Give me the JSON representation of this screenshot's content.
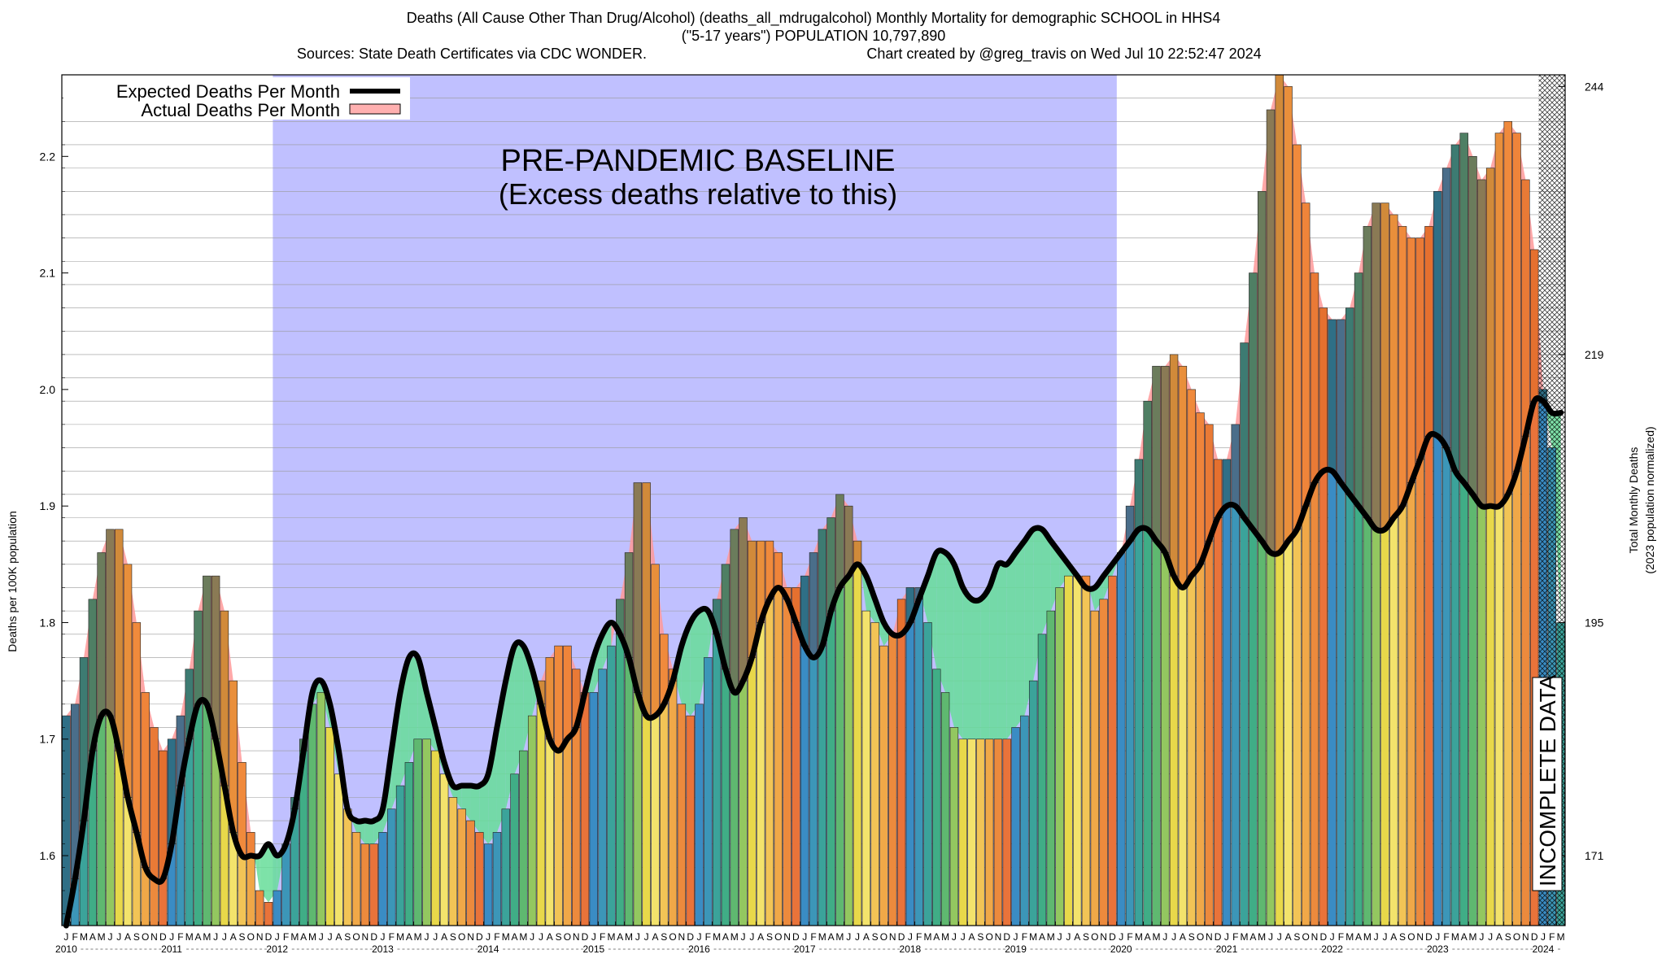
{
  "title": {
    "line1": "Deaths (All Cause Other Than Drug/Alcohol) (deaths_all_mdrugalcohol) Monthly Mortality for demographic SCHOOL in HHS4",
    "line2": "(\"5-17 years\") POPULATION 10,797,890",
    "line3_left": "Sources: State Death Certificates via CDC WONDER.",
    "line3_right": "Chart created by @greg_travis on Wed Jul 10 22:52:47 2024"
  },
  "annotations": {
    "baseline_line1": "PRE-PANDEMIC BASELINE",
    "baseline_line2": "(Excess deaths relative to this)",
    "incomplete": "INCOMPLETE DATA"
  },
  "legend": {
    "expected": "Expected Deaths Per Month",
    "actual": "Actual Deaths Per Month"
  },
  "axes": {
    "ylabel_left": "Deaths per 100K population",
    "ylabel_right_1": "Total Monthly Deaths",
    "ylabel_right_2": "(2023 population normalized)"
  },
  "colors": {
    "baseline_region": "#c0c0ff",
    "excess_fill": "#ff9999",
    "deficit_fill": "#66dd99",
    "expected_line": "#000000",
    "incomplete_hatch": "#000000"
  },
  "chart_data": {
    "type": "bar",
    "start": "2010-01",
    "end": "2024-03",
    "month_letters": [
      "J",
      "F",
      "M",
      "A",
      "M",
      "J",
      "J",
      "A",
      "S",
      "O",
      "N",
      "D"
    ],
    "years": [
      "2010",
      "2011",
      "2012",
      "2013",
      "2014",
      "2015",
      "2016",
      "2017",
      "2018",
      "2019",
      "2020",
      "2021",
      "2022",
      "2023",
      "2024"
    ],
    "ylim": [
      1.54,
      2.27
    ],
    "yticks_left": [
      1.6,
      1.7,
      1.8,
      1.9,
      2.0,
      2.1,
      2.2
    ],
    "yticks_right": [
      {
        "value": 1.6,
        "label": "171"
      },
      {
        "value": 1.8,
        "label": "195"
      },
      {
        "value": 2.03,
        "label": "219"
      },
      {
        "value": 2.26,
        "label": "244"
      }
    ],
    "baseline_period": [
      "2012-01",
      "2019-12"
    ],
    "incomplete_period": [
      "2024-01",
      "2024-03"
    ],
    "series": [
      {
        "name": "Actual Deaths Per Month",
        "values": [
          1.72,
          1.73,
          1.77,
          1.82,
          1.86,
          1.88,
          1.88,
          1.85,
          1.8,
          1.74,
          1.71,
          1.69,
          1.7,
          1.72,
          1.76,
          1.81,
          1.84,
          1.84,
          1.81,
          1.75,
          1.68,
          1.62,
          1.57,
          1.56,
          1.57,
          1.61,
          1.65,
          1.7,
          1.73,
          1.74,
          1.71,
          1.67,
          1.64,
          1.62,
          1.61,
          1.61,
          1.62,
          1.64,
          1.66,
          1.68,
          1.7,
          1.7,
          1.69,
          1.67,
          1.65,
          1.64,
          1.63,
          1.62,
          1.61,
          1.62,
          1.64,
          1.67,
          1.69,
          1.72,
          1.75,
          1.77,
          1.78,
          1.78,
          1.76,
          1.74,
          1.74,
          1.76,
          1.78,
          1.82,
          1.86,
          1.92,
          1.92,
          1.85,
          1.79,
          1.76,
          1.73,
          1.72,
          1.73,
          1.77,
          1.82,
          1.85,
          1.88,
          1.89,
          1.87,
          1.87,
          1.87,
          1.86,
          1.83,
          1.83,
          1.84,
          1.86,
          1.88,
          1.89,
          1.91,
          1.9,
          1.87,
          1.81,
          1.8,
          1.78,
          1.79,
          1.82,
          1.83,
          1.83,
          1.8,
          1.76,
          1.74,
          1.71,
          1.7,
          1.7,
          1.7,
          1.7,
          1.7,
          1.7,
          1.71,
          1.72,
          1.75,
          1.79,
          1.81,
          1.83,
          1.84,
          1.84,
          1.84,
          1.81,
          1.82,
          1.84,
          1.86,
          1.9,
          1.94,
          1.99,
          2.02,
          2.02,
          2.03,
          2.02,
          2.0,
          1.98,
          1.97,
          1.94,
          1.94,
          1.97,
          2.04,
          2.1,
          2.17,
          2.24,
          2.27,
          2.26,
          2.21,
          2.16,
          2.1,
          2.07,
          2.06,
          2.06,
          2.07,
          2.1,
          2.14,
          2.16,
          2.16,
          2.15,
          2.14,
          2.13,
          2.13,
          2.14,
          2.17,
          2.19,
          2.21,
          2.22,
          2.2,
          2.18,
          2.19,
          2.22,
          2.23,
          2.22,
          2.18,
          2.12,
          2.0,
          1.95,
          1.8
        ]
      },
      {
        "name": "Expected Deaths Per Month",
        "values": [
          1.54,
          1.58,
          1.63,
          1.69,
          1.72,
          1.72,
          1.69,
          1.65,
          1.62,
          1.59,
          1.58,
          1.58,
          1.61,
          1.66,
          1.7,
          1.73,
          1.73,
          1.7,
          1.66,
          1.62,
          1.6,
          1.6,
          1.6,
          1.61,
          1.6,
          1.61,
          1.64,
          1.69,
          1.74,
          1.75,
          1.73,
          1.69,
          1.64,
          1.63,
          1.63,
          1.63,
          1.64,
          1.69,
          1.74,
          1.77,
          1.77,
          1.74,
          1.71,
          1.68,
          1.66,
          1.66,
          1.66,
          1.66,
          1.67,
          1.71,
          1.75,
          1.78,
          1.78,
          1.76,
          1.73,
          1.7,
          1.69,
          1.7,
          1.71,
          1.74,
          1.77,
          1.79,
          1.8,
          1.79,
          1.77,
          1.74,
          1.72,
          1.72,
          1.73,
          1.75,
          1.78,
          1.8,
          1.81,
          1.81,
          1.79,
          1.76,
          1.74,
          1.75,
          1.77,
          1.8,
          1.82,
          1.83,
          1.82,
          1.8,
          1.78,
          1.77,
          1.78,
          1.81,
          1.83,
          1.84,
          1.85,
          1.84,
          1.82,
          1.8,
          1.79,
          1.79,
          1.8,
          1.82,
          1.84,
          1.86,
          1.86,
          1.85,
          1.83,
          1.82,
          1.82,
          1.83,
          1.85,
          1.85,
          1.86,
          1.87,
          1.88,
          1.88,
          1.87,
          1.86,
          1.85,
          1.84,
          1.83,
          1.83,
          1.84,
          1.85,
          1.86,
          1.87,
          1.88,
          1.88,
          1.87,
          1.86,
          1.84,
          1.83,
          1.84,
          1.85,
          1.87,
          1.89,
          1.9,
          1.9,
          1.89,
          1.88,
          1.87,
          1.86,
          1.86,
          1.87,
          1.88,
          1.9,
          1.92,
          1.93,
          1.93,
          1.92,
          1.91,
          1.9,
          1.89,
          1.88,
          1.88,
          1.89,
          1.9,
          1.92,
          1.94,
          1.96,
          1.96,
          1.95,
          1.93,
          1.92,
          1.91,
          1.9,
          1.9,
          1.9,
          1.91,
          1.93,
          1.96,
          1.99,
          1.99,
          1.98,
          1.98
        ]
      }
    ]
  }
}
